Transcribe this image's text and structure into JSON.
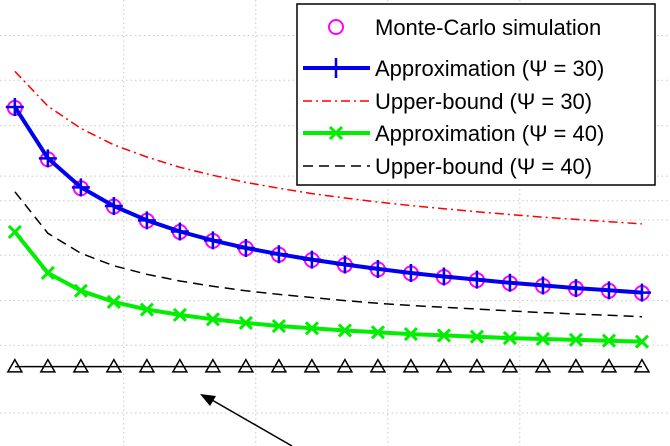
{
  "chart_data": {
    "type": "line",
    "x": [
      1,
      2,
      3,
      4,
      5,
      6,
      7,
      8,
      9,
      10,
      11,
      12,
      13,
      14,
      15,
      16,
      17,
      18,
      19,
      20
    ],
    "xlim": [
      0.55,
      20.85
    ],
    "ylim": [
      0,
      100
    ],
    "grid": true,
    "legend_placement": "top-right",
    "series": [
      {
        "name": "Monte-Carlo simulation",
        "color": "#ff00ff",
        "style": "marker-circle",
        "values": [
          75.8,
          64.3,
          57.8,
          53.7,
          50.5,
          48.0,
          46.0,
          44.3,
          42.9,
          41.7,
          40.6,
          39.6,
          38.7,
          37.9,
          37.2,
          36.5,
          35.9,
          35.3,
          34.8,
          34.3
        ]
      },
      {
        "name": "Approximation (Ψ = 30)",
        "color": "#0000ee",
        "style": "solid-plus",
        "values": [
          76.0,
          64.5,
          58.0,
          53.8,
          50.6,
          48.1,
          46.1,
          44.4,
          43.0,
          41.8,
          40.7,
          39.7,
          38.8,
          38.0,
          37.3,
          36.6,
          36.0,
          35.4,
          34.9,
          34.4
        ]
      },
      {
        "name": "Upper-bound  (Ψ = 30)",
        "color": "#ff0000",
        "style": "dashdot",
        "values": [
          84.0,
          76.2,
          71.2,
          67.5,
          64.8,
          62.5,
          60.7,
          59.1,
          57.8,
          56.6,
          55.6,
          54.7,
          53.9,
          53.2,
          52.5,
          51.9,
          51.3,
          50.8,
          50.3,
          49.8
        ]
      },
      {
        "name": "Approximation (Ψ = 40)",
        "color": "#00ee00",
        "style": "solid-x",
        "values": [
          48.0,
          38.8,
          34.8,
          32.3,
          30.6,
          29.4,
          28.4,
          27.6,
          26.9,
          26.4,
          25.9,
          25.5,
          25.1,
          24.8,
          24.5,
          24.2,
          24.0,
          23.8,
          23.6,
          23.4
        ]
      },
      {
        "name": "Upper-bound  (Ψ = 40)",
        "color": "#000000",
        "style": "dashed",
        "values": [
          57.0,
          47.7,
          43.2,
          40.4,
          38.5,
          37.0,
          35.8,
          34.8,
          34.0,
          33.3,
          32.6,
          32.0,
          31.5,
          31.1,
          30.7,
          30.3,
          29.9,
          29.6,
          29.3,
          29.0
        ]
      },
      {
        "name": "",
        "color": "#000000",
        "style": "solid-triangle",
        "values": [
          17.8,
          17.8,
          17.8,
          17.8,
          17.8,
          17.8,
          17.8,
          17.8,
          17.8,
          17.8,
          17.8,
          17.8,
          17.8,
          17.8,
          17.8,
          17.8,
          17.8,
          17.8,
          17.8,
          17.8
        ]
      }
    ]
  }
}
